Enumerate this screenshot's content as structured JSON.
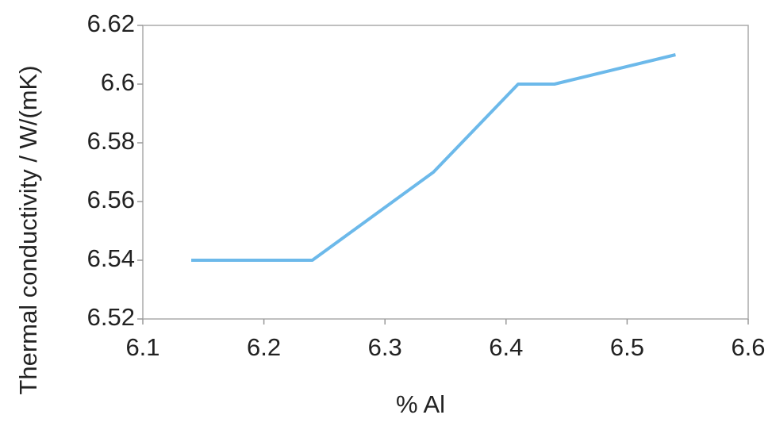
{
  "chart_data": {
    "type": "line",
    "x_label": "% Al",
    "y_label": "Thermal conductivity / W/(mK)",
    "series": [
      {
        "name": "Thermal conductivity",
        "color": "#6cb9ea",
        "x": [
          6.14,
          6.24,
          6.34,
          6.41,
          6.44,
          6.54
        ],
        "values": [
          6.54,
          6.54,
          6.57,
          6.6,
          6.6,
          6.61
        ]
      }
    ],
    "xlim": [
      6.1,
      6.6
    ],
    "xticks": [
      6.1,
      6.2,
      6.3,
      6.4,
      6.5,
      6.6
    ],
    "ylim": [
      6.52,
      6.62
    ],
    "yticks": [
      6.52,
      6.54,
      6.56,
      6.58,
      6.6,
      6.62
    ],
    "grid": false
  }
}
